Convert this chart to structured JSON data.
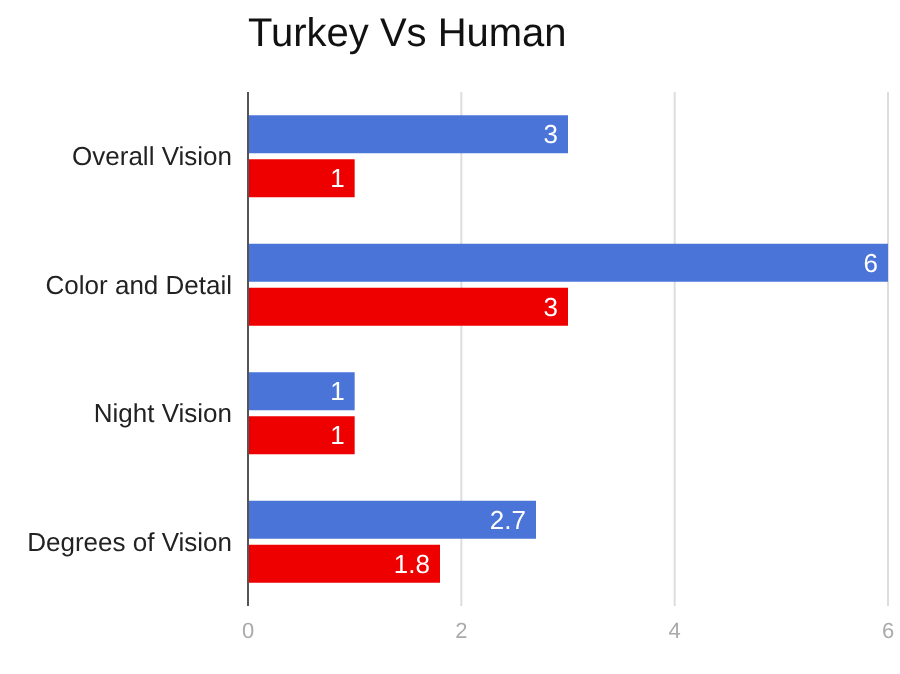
{
  "chart_data": {
    "type": "bar",
    "orientation": "horizontal",
    "title": "Turkey Vs Human",
    "categories": [
      "Overall Vision",
      "Color and Detail",
      "Night Vision",
      "Degrees of Vision"
    ],
    "series": [
      {
        "color": "#4a74d8",
        "values": [
          3,
          6,
          1,
          2.7
        ]
      },
      {
        "color": "#ee0000",
        "values": [
          1,
          3,
          1,
          1.8
        ]
      }
    ],
    "xlim": [
      0,
      6
    ],
    "xticks": [
      0,
      2,
      4,
      6
    ],
    "grid": "x",
    "data_labels": true,
    "legend": false
  }
}
